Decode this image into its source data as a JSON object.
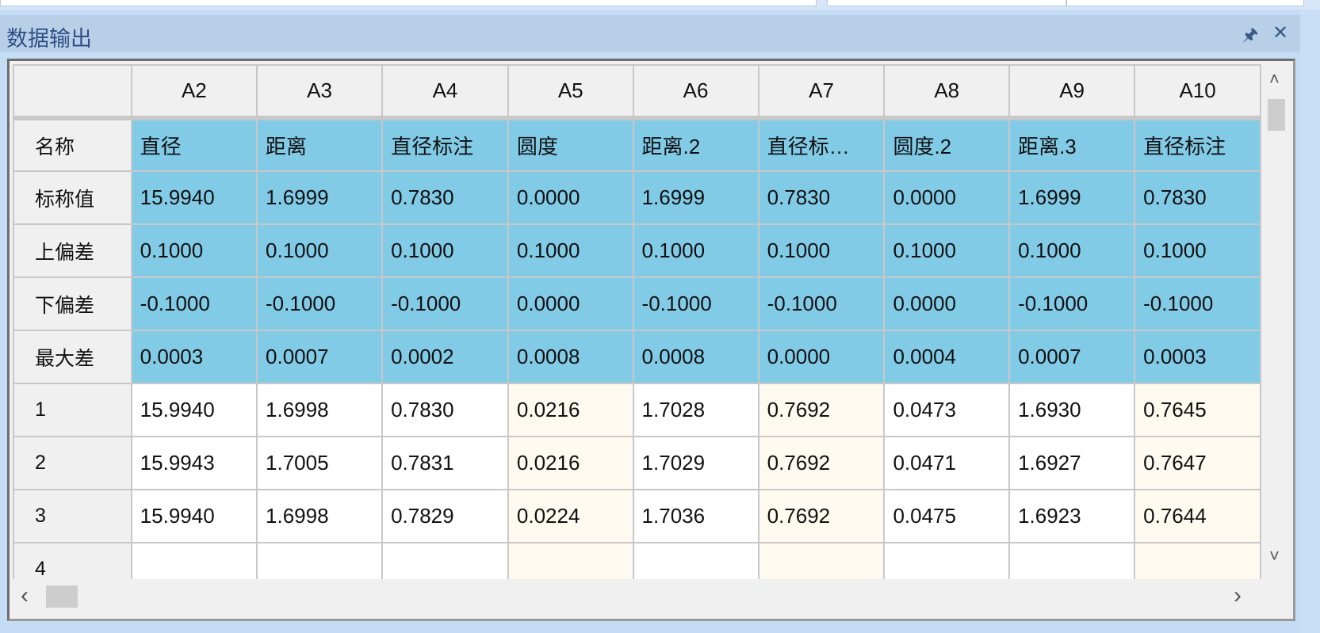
{
  "panel": {
    "title": "数据输出",
    "pin_icon": "pin-icon",
    "close_icon": "close-icon"
  },
  "table": {
    "columns": [
      "A2",
      "A3",
      "A4",
      "A5",
      "A6",
      "A7",
      "A8",
      "A9",
      "A10"
    ],
    "spec_rows": [
      {
        "label": "名称",
        "values": [
          "直径",
          "距离",
          "直径标注",
          "圆度",
          "距离.2",
          "直径标…",
          "圆度.2",
          "距离.3",
          "直径标注"
        ]
      },
      {
        "label": "标称值",
        "values": [
          "15.9940",
          "1.6999",
          "0.7830",
          "0.0000",
          "1.6999",
          "0.7830",
          "0.0000",
          "1.6999",
          "0.7830"
        ]
      },
      {
        "label": "上偏差",
        "values": [
          "0.1000",
          "0.1000",
          "0.1000",
          "0.1000",
          "0.1000",
          "0.1000",
          "0.1000",
          "0.1000",
          "0.1000"
        ]
      },
      {
        "label": "下偏差",
        "values": [
          "-0.1000",
          "-0.1000",
          "-0.1000",
          "0.0000",
          "-0.1000",
          "-0.1000",
          "0.0000",
          "-0.1000",
          "-0.1000"
        ]
      },
      {
        "label": "最大差",
        "values": [
          "0.0003",
          "0.0007",
          "0.0002",
          "0.0008",
          "0.0008",
          "0.0000",
          "0.0004",
          "0.0007",
          "0.0003"
        ]
      }
    ],
    "data_rows": [
      {
        "label": "1",
        "values": [
          "15.9940",
          "1.6998",
          "0.7830",
          "0.0216",
          "1.7028",
          "0.7692",
          "0.0473",
          "1.6930",
          "0.7645"
        ]
      },
      {
        "label": "2",
        "values": [
          "15.9943",
          "1.7005",
          "0.7831",
          "0.0216",
          "1.7029",
          "0.7692",
          "0.0471",
          "1.6927",
          "0.7647"
        ]
      },
      {
        "label": "3",
        "values": [
          "15.9940",
          "1.6998",
          "0.7829",
          "0.0224",
          "1.7036",
          "0.7692",
          "0.0475",
          "1.6923",
          "0.7644"
        ]
      },
      {
        "label": "4",
        "values": [
          "",
          "",
          "",
          "",
          "",
          "",
          "",
          "",
          ""
        ]
      }
    ]
  },
  "colors": {
    "spec_fill": "#82cbe7",
    "alt_column_fill": "#fffaf0",
    "title_bar": "#b9cfe8"
  },
  "scroll": {
    "up": "˄",
    "down": "˅",
    "left": "‹",
    "right": "›"
  }
}
